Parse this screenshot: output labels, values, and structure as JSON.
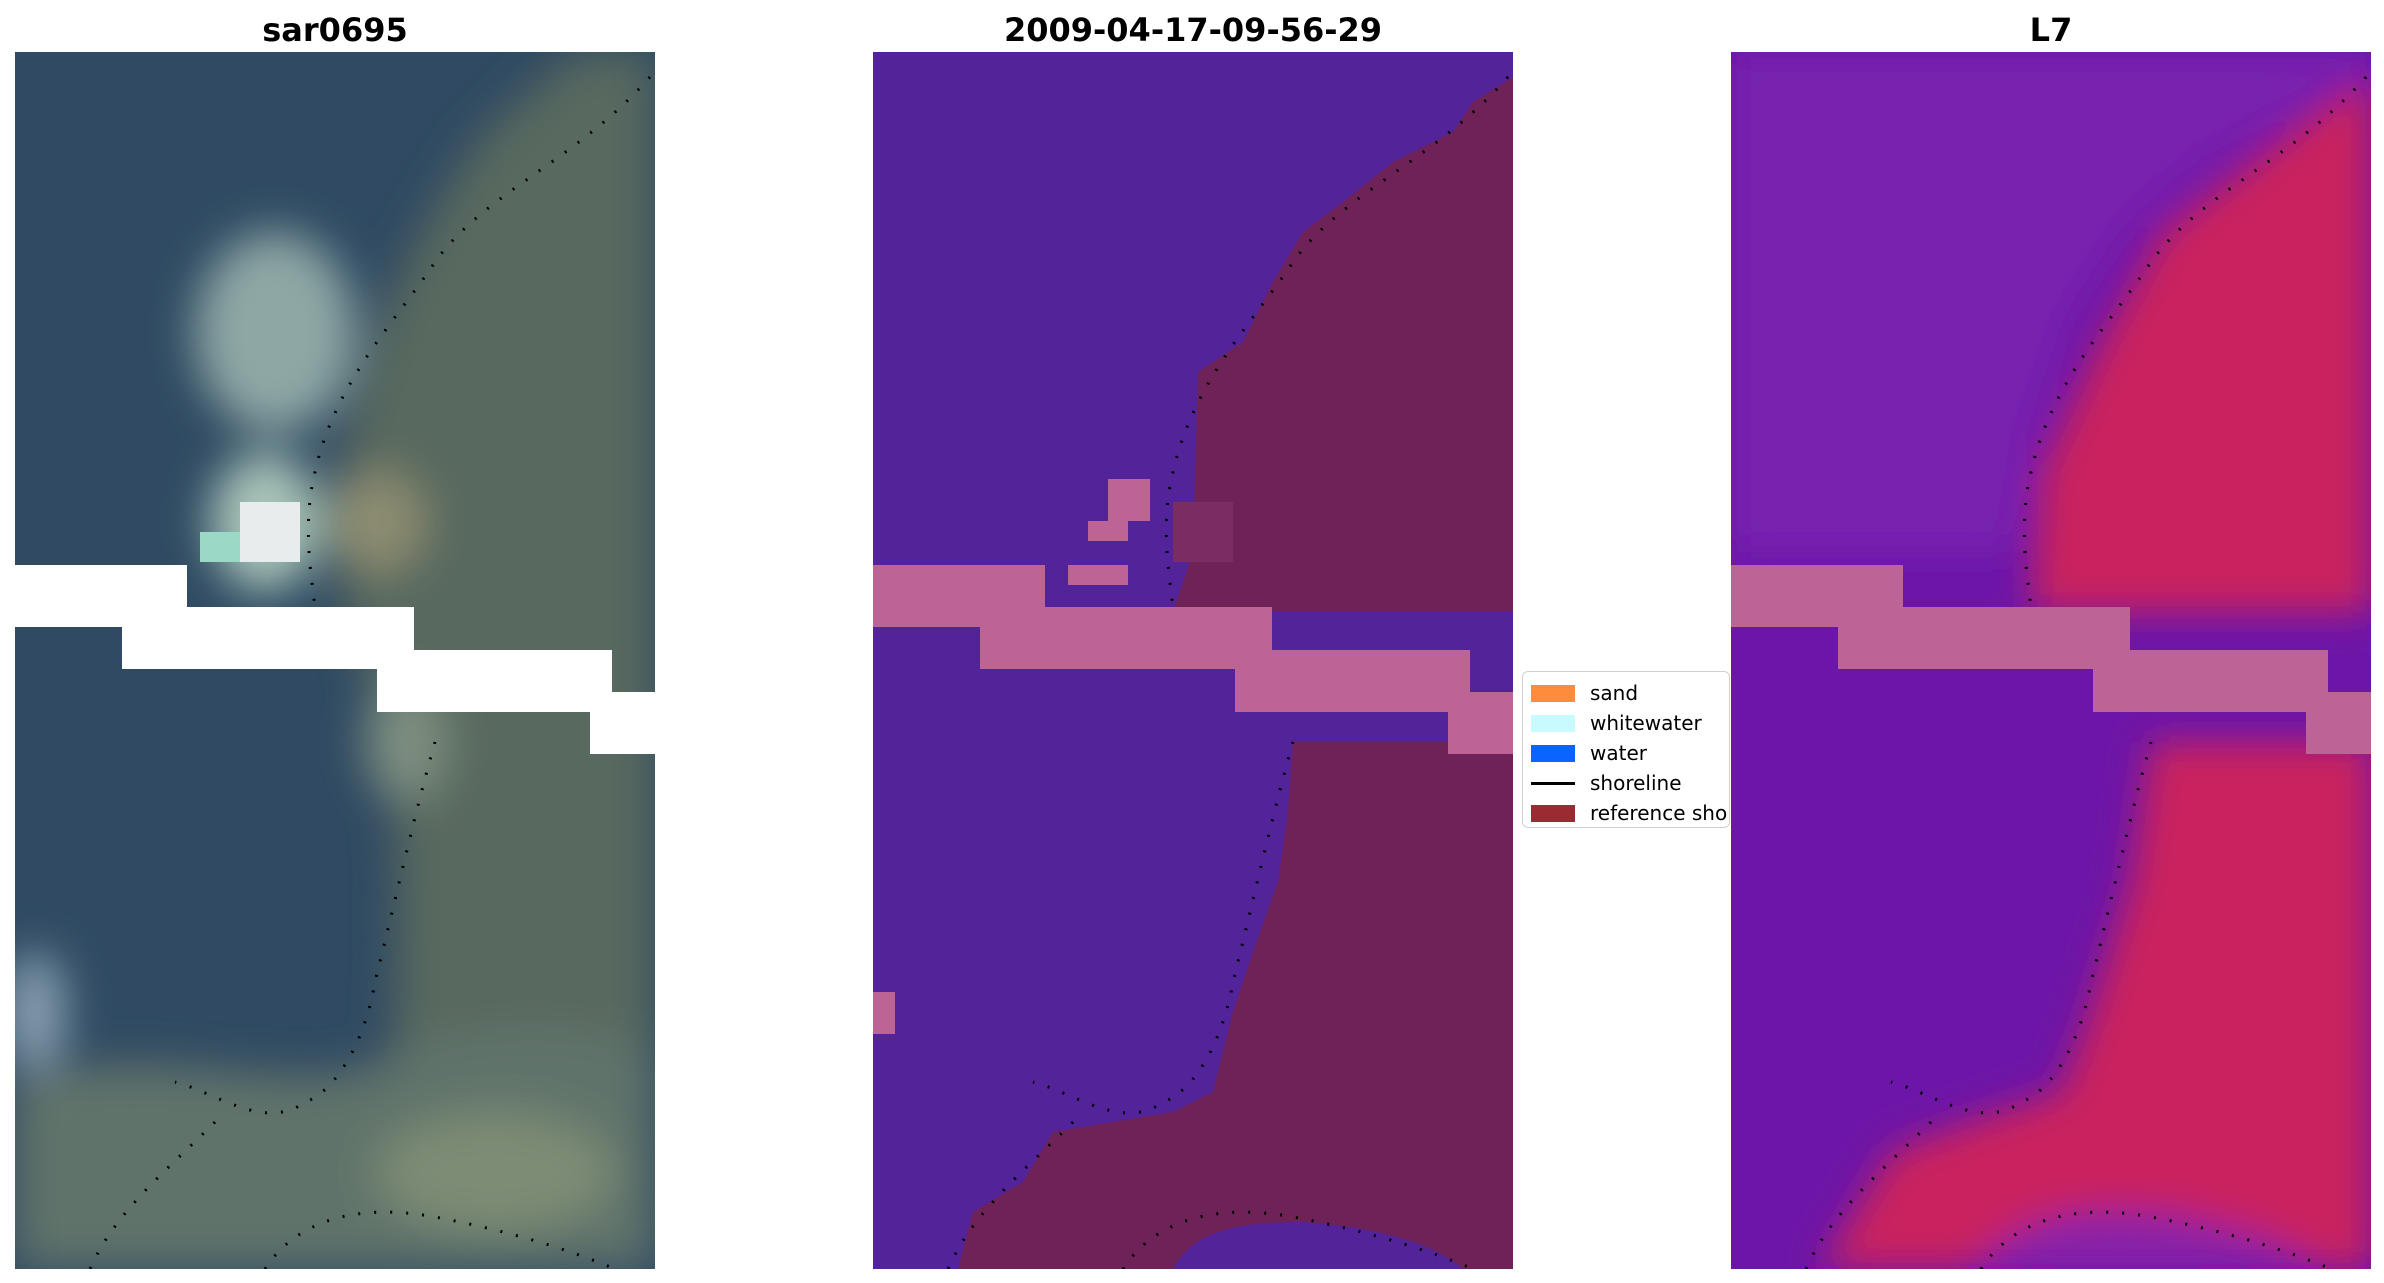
{
  "panels": [
    {
      "title": "sar0695"
    },
    {
      "title": "2009-04-17-09-56-29"
    },
    {
      "title": "L7"
    }
  ],
  "legend": [
    {
      "label": "sand",
      "kind": "patch",
      "color": "#ff8c3a"
    },
    {
      "label": "whitewater",
      "kind": "patch",
      "color": "#c8fbff"
    },
    {
      "label": "water",
      "kind": "patch",
      "color": "#0a64ff"
    },
    {
      "label": "shoreline",
      "kind": "line",
      "color": "#000000"
    },
    {
      "label": "reference shoreline",
      "kind": "patch",
      "color": "#9b2a33"
    }
  ],
  "colors": {
    "rgb_water": "#2b4560",
    "rgb_land": "#5e7068",
    "class_water": "#53239a",
    "class_land": "#6e2257",
    "class_band": "#bd6497",
    "index_low": "#6c16a8",
    "index_high": "#d41e50",
    "mask_white": "#ffffff"
  }
}
